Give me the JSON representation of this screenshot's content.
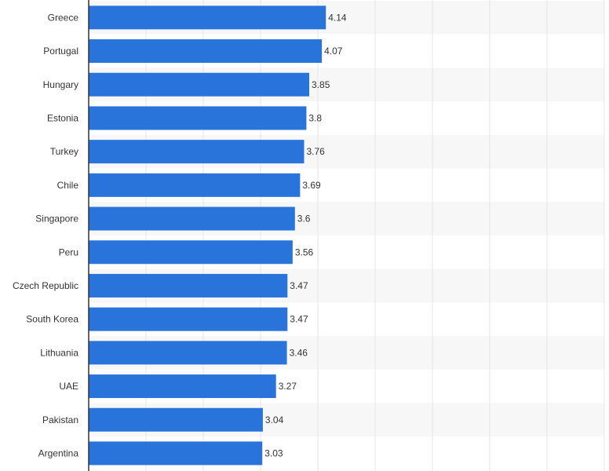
{
  "chart_data": {
    "type": "bar",
    "orientation": "horizontal",
    "categories": [
      "Greece",
      "Portugal",
      "Hungary",
      "Estonia",
      "Turkey",
      "Chile",
      "Singapore",
      "Peru",
      "Czech Republic",
      "South Korea",
      "Lithuania",
      "UAE",
      "Pakistan",
      "Argentina"
    ],
    "values": [
      4.14,
      4.07,
      3.85,
      3.8,
      3.76,
      3.69,
      3.6,
      3.56,
      3.47,
      3.47,
      3.46,
      3.27,
      3.04,
      3.03
    ],
    "value_labels": [
      "4.14",
      "4.07",
      "3.85",
      "3.8",
      "3.76",
      "3.69",
      "3.6",
      "3.56",
      "3.47",
      "3.47",
      "3.46",
      "3.27",
      "3.04",
      "3.03"
    ],
    "xlim": [
      0,
      9
    ],
    "grid": true,
    "bar_color": "#2874db",
    "band_color": "#f7f7f7",
    "grid_color": "#e6e6e6",
    "axis_color": "#333333"
  }
}
